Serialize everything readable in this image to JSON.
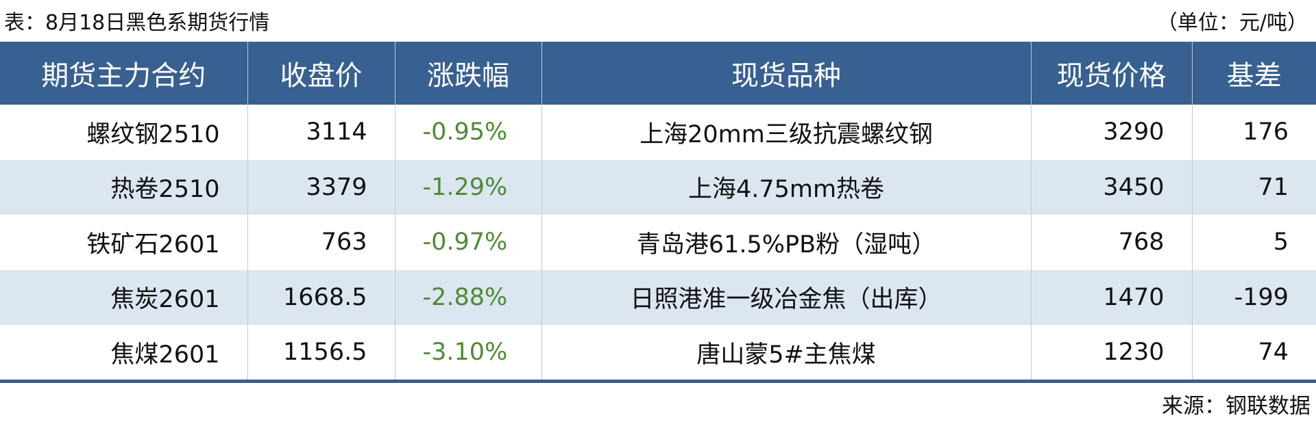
{
  "title": "表：8月18日黑色系期货行情",
  "unit": "（单位：元/吨）",
  "headers": [
    "期货主力合约",
    "收盘价",
    "涨跌幅",
    "现货品种",
    "现货价格",
    "基差"
  ],
  "rows": [
    {
      "contract": "螺纹钢2510",
      "close": "3114",
      "change": "-0.95%",
      "spot": "上海20mm三级抗震螺纹钢",
      "spot_price": "3290",
      "basis": "176"
    },
    {
      "contract": "热卷2510",
      "close": "3379",
      "change": "-1.29%",
      "spot": "上海4.75mm热卷",
      "spot_price": "3450",
      "basis": "71"
    },
    {
      "contract": "铁矿石2601",
      "close": "763",
      "change": "-0.97%",
      "spot": "青岛港61.5%PB粉（湿吨）",
      "spot_price": "768",
      "basis": "5"
    },
    {
      "contract": "焦炭2601",
      "close": "1668.5",
      "change": "-2.88%",
      "spot": "日照港准一级冶金焦（出库）",
      "spot_price": "1470",
      "basis": "-199"
    },
    {
      "contract": "焦煤2601",
      "close": "1156.5",
      "change": "-3.10%",
      "spot": "唐山蒙5#主焦煤",
      "spot_price": "1230",
      "basis": "74"
    }
  ],
  "source": "来源：钢联数据",
  "colors": {
    "header_bg": "#386090",
    "alt_row": "#dce6f1",
    "change_text": "#4e8a34"
  }
}
